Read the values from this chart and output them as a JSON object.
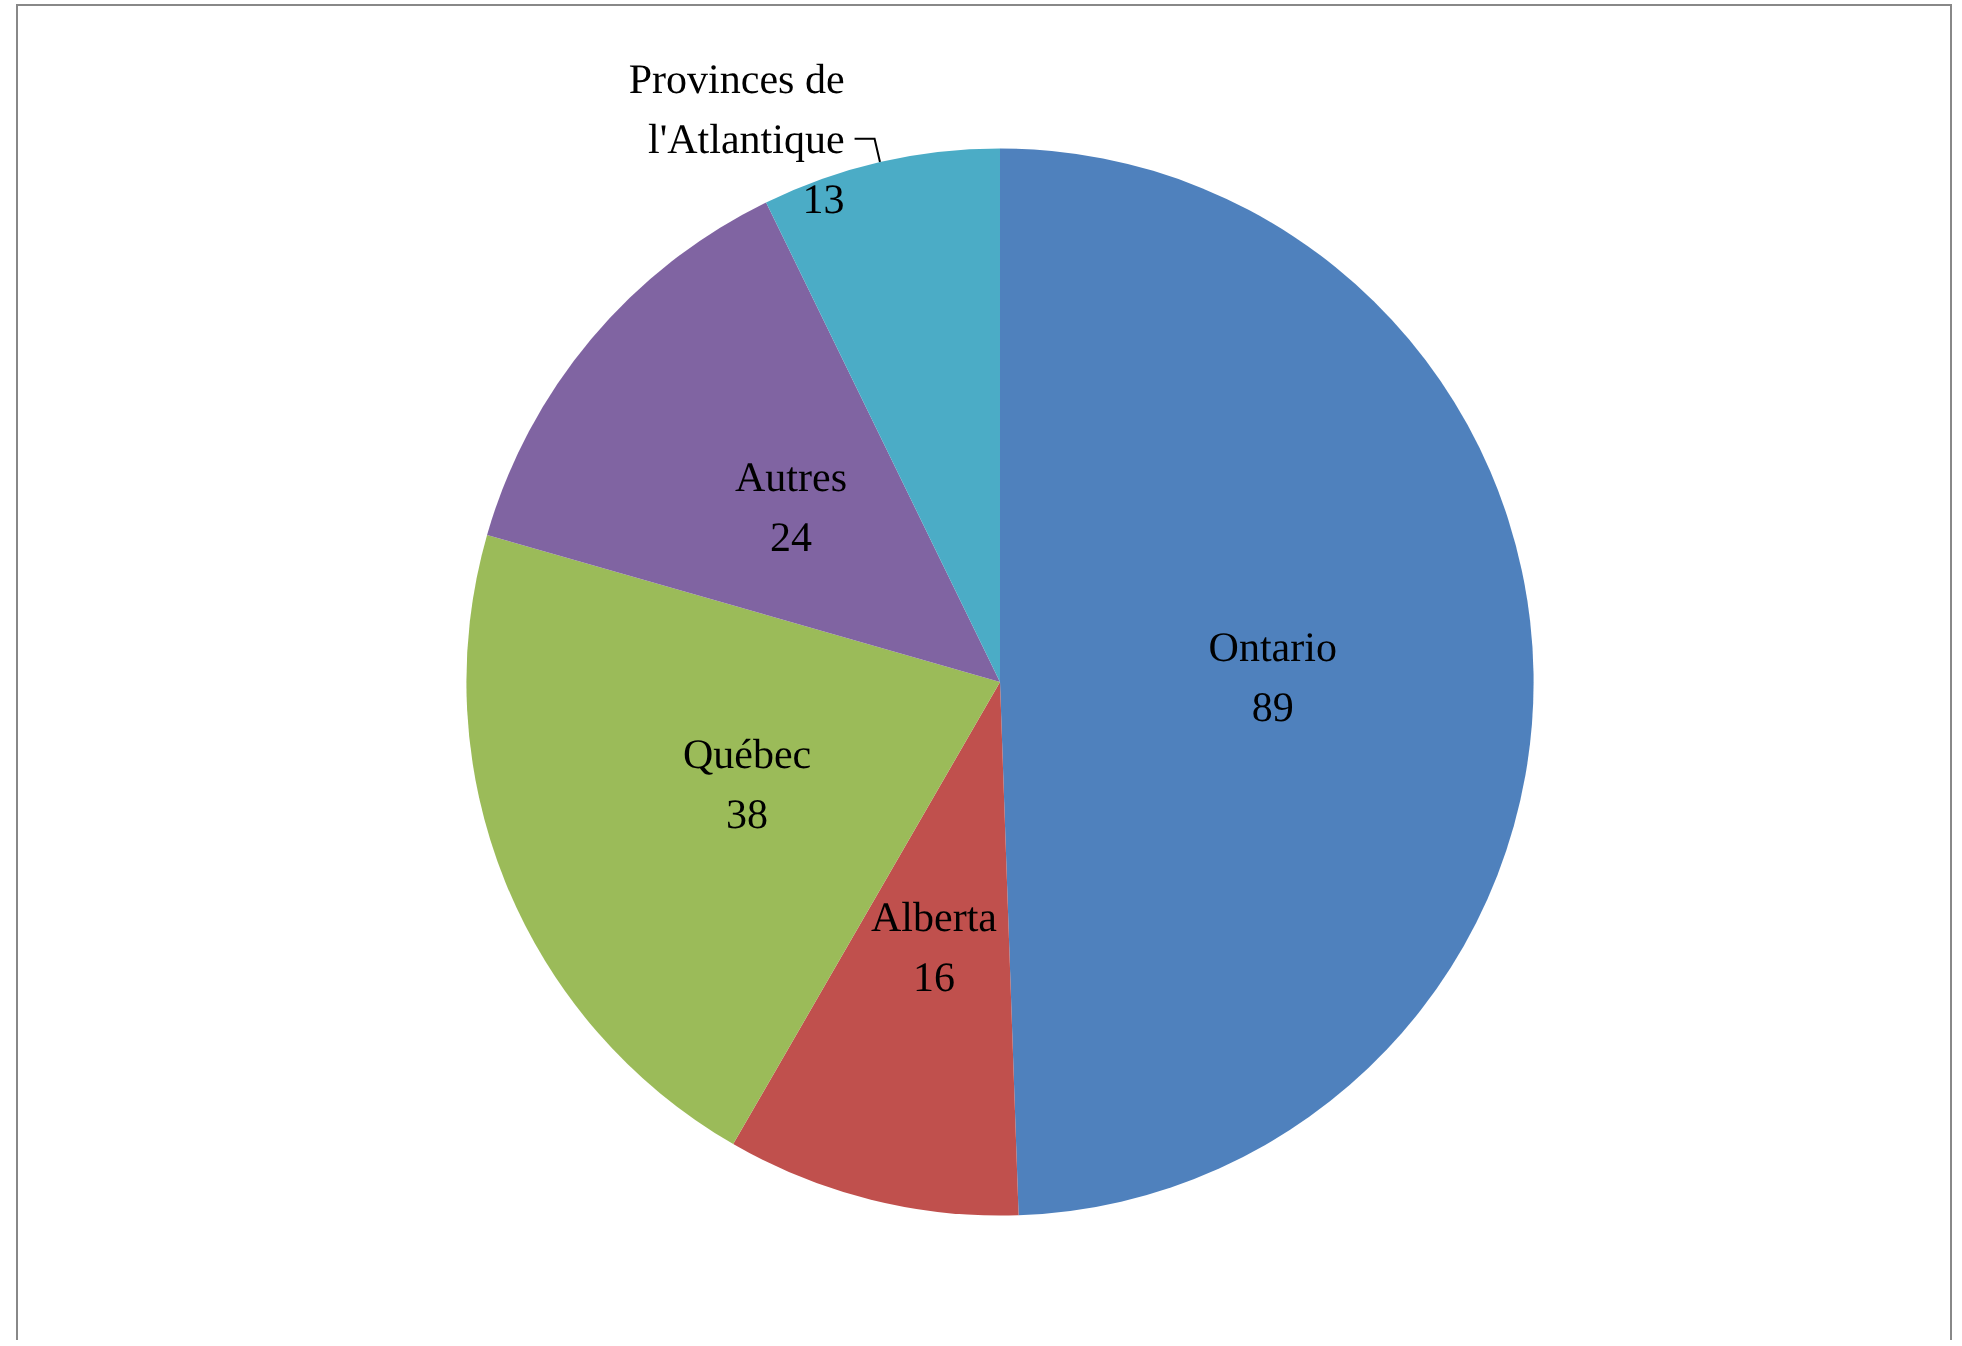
{
  "chart_data": {
    "type": "pie",
    "categories": [
      "Ontario",
      "Alberta",
      "Québec",
      "Autres",
      "Provinces de\nl'Atlantique"
    ],
    "values": [
      89,
      16,
      38,
      24,
      13
    ],
    "colors": [
      "#4f81bd",
      "#c0504d",
      "#9bbb59",
      "#8064a2",
      "#4bacc6"
    ],
    "data_labels": true,
    "legend": false
  }
}
